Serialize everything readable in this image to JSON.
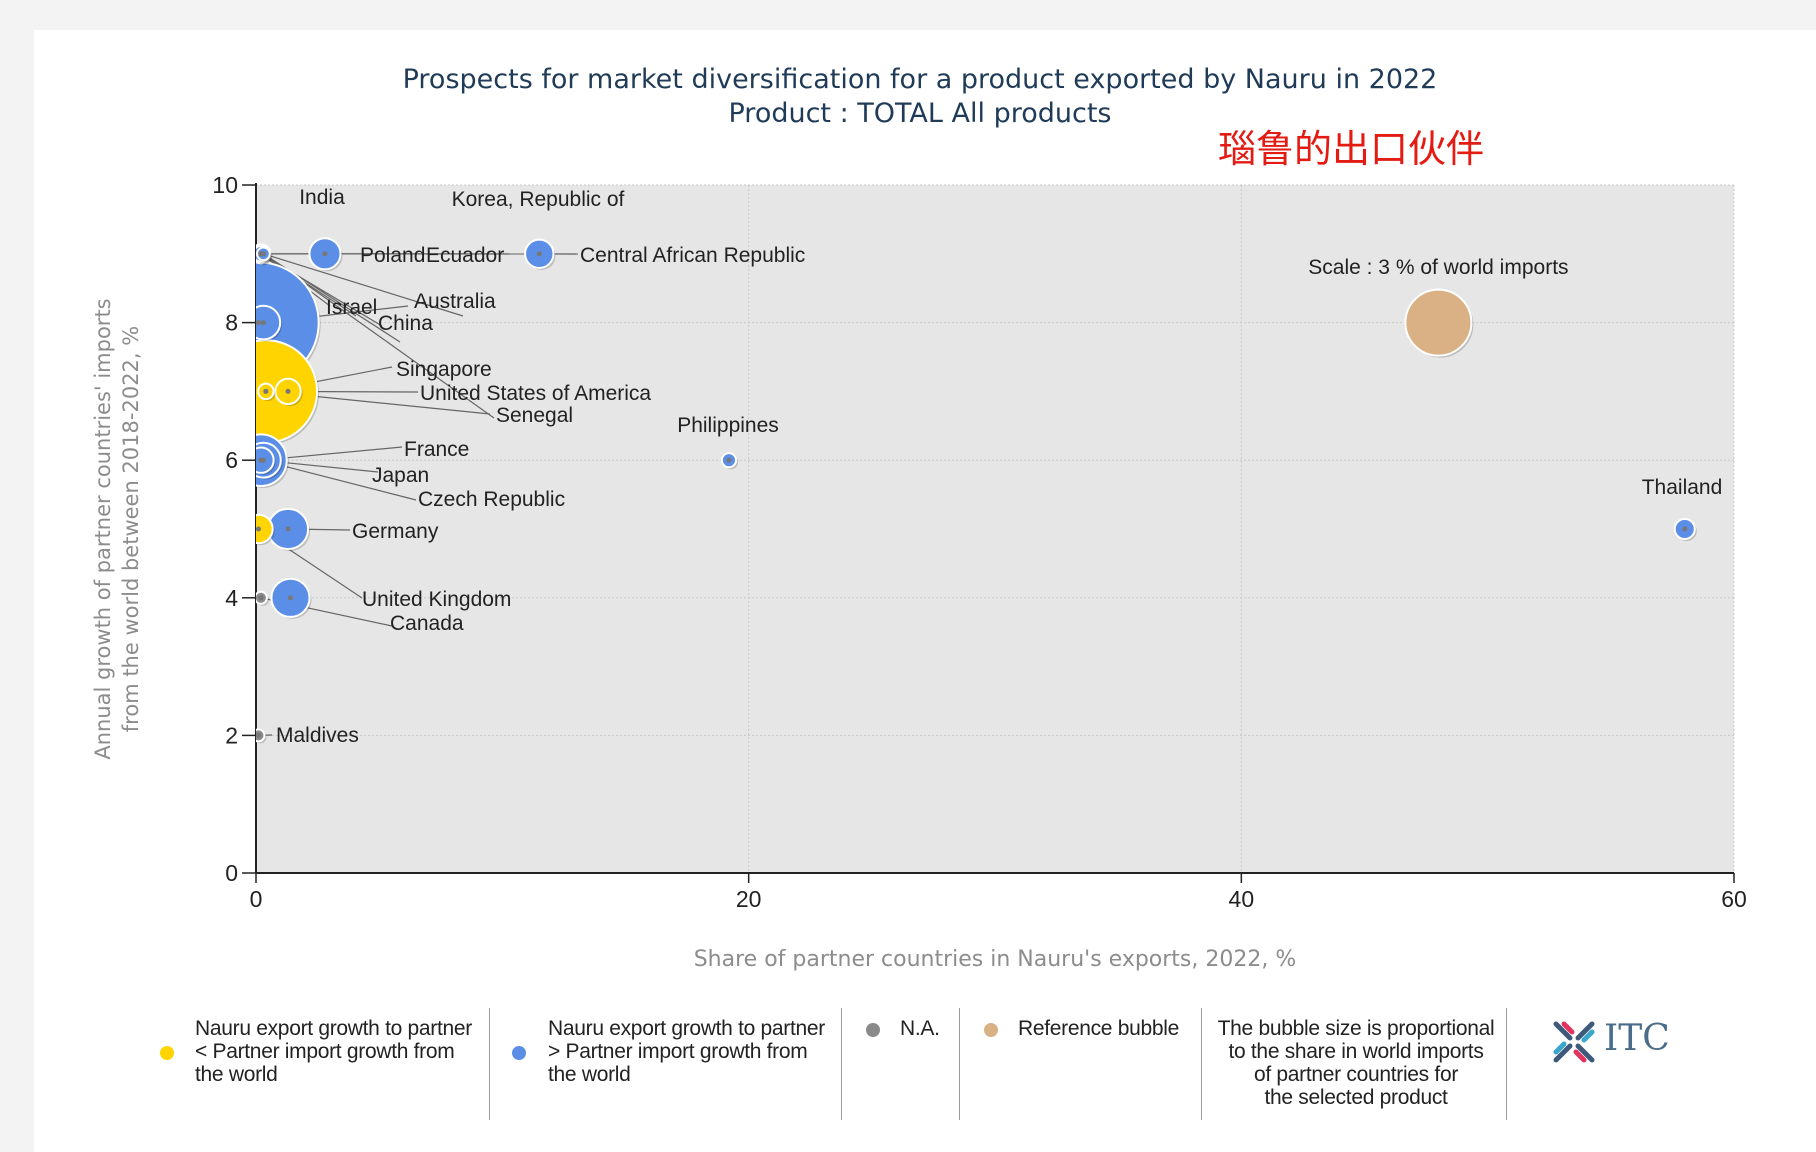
{
  "chart_data": {
    "type": "scatter",
    "title": "Prospects for market diversification for a product exported by Nauru in 2022",
    "subtitle": "Product : TOTAL All products",
    "xlabel": "Share of partner countries in Nauru's exports, 2022, %",
    "ylabel": [
      "Annual growth of partner countries' imports",
      "from the world between 2018-2022, %"
    ],
    "xlim": [
      0,
      60
    ],
    "ylim": [
      0,
      10
    ],
    "xticks": [
      "0",
      "20",
      "40",
      "60"
    ],
    "yticks": [
      "0",
      "2",
      "4",
      "6",
      "8",
      "10"
    ],
    "grid": true,
    "colors": {
      "yellow": "#ffd400",
      "blue": "#5b8ee6",
      "gray": "#8a8a8a",
      "reference": "#d9b185",
      "plot_bg": "#e6e6e6"
    },
    "reference": {
      "label": "Scale : 3 % of world imports",
      "x": 48,
      "y": 8,
      "share_world_imports": 3
    },
    "points": [
      {
        "name": "India",
        "x": 0.2,
        "y": 9.0,
        "group": "yellow",
        "bubble": 0.45
      },
      {
        "name": "Korea, Republic of",
        "x": 0.2,
        "y": 9.0,
        "group": "blue",
        "bubble": 0.35
      },
      {
        "name": "Poland",
        "x": 2.8,
        "y": 9.0,
        "group": "blue",
        "bubble": 1.2
      },
      {
        "name": "Ecuador",
        "x": 0.3,
        "y": 9.0,
        "group": "blue",
        "bubble": 0.2
      },
      {
        "name": "Central African Republic",
        "x": 11.5,
        "y": 9.0,
        "group": "blue",
        "bubble": 1.0
      },
      {
        "name": "Israel",
        "x": 0.2,
        "y": 9.0,
        "group": "blue",
        "bubble": 0.3
      },
      {
        "name": "Australia",
        "x": 0.3,
        "y": 8.0,
        "group": "blue",
        "bubble": 1.4
      },
      {
        "name": "China",
        "x": 0.1,
        "y": 8.0,
        "group": "blue",
        "bubble": 18.0
      },
      {
        "name": "Singapore",
        "x": 1.3,
        "y": 7.0,
        "group": "yellow",
        "bubble": 0.8
      },
      {
        "name": "United States of America",
        "x": 0.4,
        "y": 7.0,
        "group": "yellow",
        "bubble": 13.0
      },
      {
        "name": "Senegal",
        "x": 0.4,
        "y": 7.0,
        "group": "yellow",
        "bubble": 0.3
      },
      {
        "name": "Philippines",
        "x": 19.2,
        "y": 6.0,
        "group": "blue",
        "bubble": 0.25
      },
      {
        "name": "France",
        "x": 0.2,
        "y": 6.0,
        "group": "blue",
        "bubble": 3.3
      },
      {
        "name": "Japan",
        "x": 0.3,
        "y": 6.0,
        "group": "blue",
        "bubble": 1.5
      },
      {
        "name": "Czech Republic",
        "x": 0.2,
        "y": 6.0,
        "group": "blue",
        "bubble": 0.8
      },
      {
        "name": "Thailand",
        "x": 58.0,
        "y": 5.0,
        "group": "blue",
        "bubble": 0.5
      },
      {
        "name": "Germany",
        "x": 1.3,
        "y": 5.0,
        "group": "blue",
        "bubble": 2.0
      },
      {
        "name": "Germany-yellow",
        "x": 0.1,
        "y": 5.0,
        "group": "yellow",
        "bubble": 1.0
      },
      {
        "name": "United Kingdom",
        "x": 1.4,
        "y": 4.0,
        "group": "blue",
        "bubble": 1.8
      },
      {
        "name": "Canada",
        "x": 0.2,
        "y": 4.0,
        "group": "gray",
        "bubble": 0.05
      },
      {
        "name": "Maldives",
        "x": 0.1,
        "y": 2.0,
        "group": "gray",
        "bubble": 0.02
      }
    ]
  },
  "annotation_cn": "瑙鲁的出口伙伴",
  "legend": {
    "yellow_text": [
      "Nauru export growth to partner",
      "< Partner import growth from",
      "the world"
    ],
    "blue_text": [
      "Nauru export growth to partner",
      "> Partner import growth from",
      "the world"
    ],
    "na_text": "N.A.",
    "reference_text": "Reference bubble",
    "size_note": [
      "The bubble size is proportional",
      "to the share in world imports",
      "of partner countries for",
      "the selected product"
    ],
    "logo_text": "ITC"
  }
}
